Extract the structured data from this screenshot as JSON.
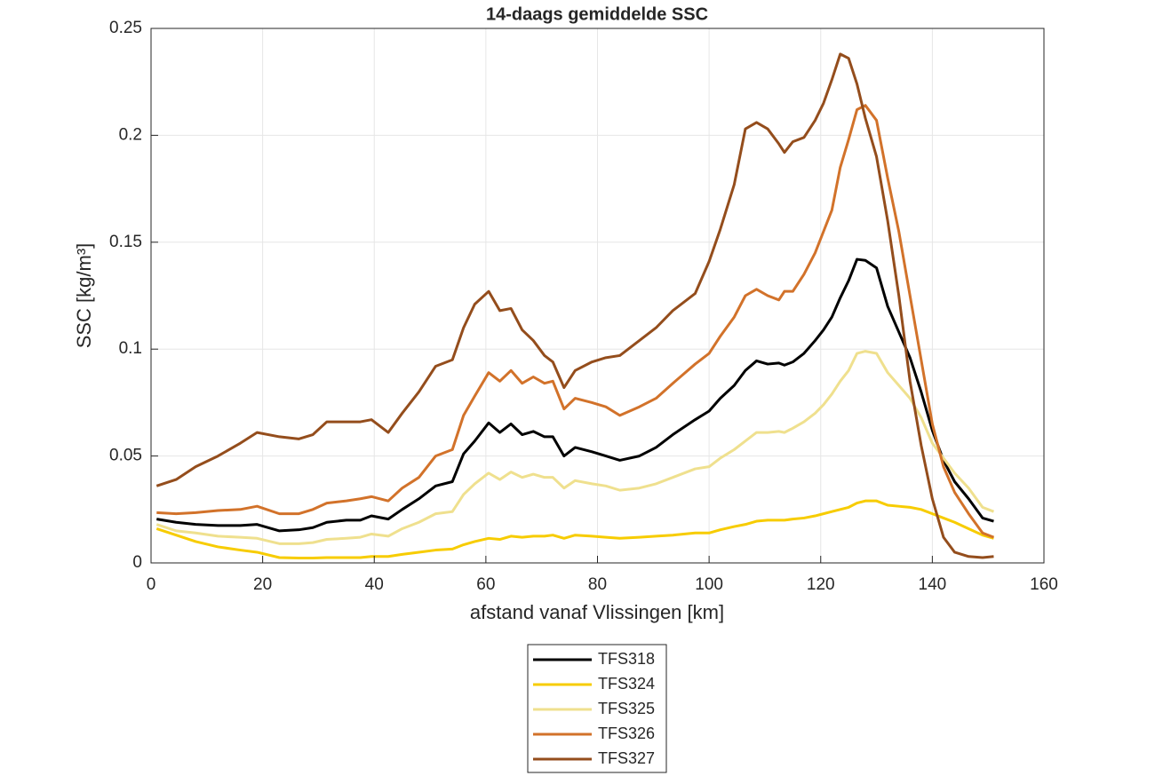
{
  "chart_data": {
    "type": "line",
    "title": "14-daags gemiddelde SSC",
    "xlabel": "afstand vanaf Vlissingen [km]",
    "ylabel": "SSC [kg/m³]",
    "xlim": [
      0,
      160
    ],
    "xticks": [
      0,
      20,
      40,
      60,
      80,
      100,
      120,
      140,
      160
    ],
    "ylim": [
      0,
      0.25
    ],
    "yticks": [
      0,
      0.05,
      0.1,
      0.15,
      0.2,
      0.25
    ],
    "grid": true,
    "legend": "below",
    "x": [
      1,
      4.5,
      8,
      12,
      16,
      19,
      23,
      26.5,
      29,
      31.5,
      35,
      37.5,
      39.5,
      42.5,
      45,
      48,
      51,
      54,
      56,
      58,
      60.5,
      62.5,
      64.5,
      66.5,
      68.5,
      70.5,
      72,
      74,
      76,
      79,
      81.5,
      84,
      87.5,
      90.5,
      93.5,
      97.5,
      100,
      102,
      104.5,
      106.5,
      108.5,
      110.5,
      112.5,
      113.5,
      115,
      117,
      119,
      120.5,
      122,
      123.5,
      125,
      126.5,
      128,
      130,
      132,
      134,
      136,
      138,
      140,
      142,
      144,
      146.5,
      149,
      151
    ],
    "series": [
      {
        "name": "TFS318",
        "color": "#000000",
        "values": [
          0.0205,
          0.019,
          0.018,
          0.0175,
          0.0175,
          0.018,
          0.015,
          0.0155,
          0.0165,
          0.019,
          0.02,
          0.02,
          0.022,
          0.0205,
          0.025,
          0.03,
          0.036,
          0.038,
          0.051,
          0.057,
          0.0655,
          0.061,
          0.065,
          0.06,
          0.0615,
          0.059,
          0.059,
          0.05,
          0.054,
          0.052,
          0.05,
          0.048,
          0.05,
          0.054,
          0.06,
          0.067,
          0.071,
          0.077,
          0.083,
          0.09,
          0.0945,
          0.093,
          0.0935,
          0.0925,
          0.094,
          0.098,
          0.104,
          0.109,
          0.115,
          0.124,
          0.132,
          0.142,
          0.1415,
          0.138,
          0.12,
          0.108,
          0.096,
          0.08,
          0.062,
          0.048,
          0.038,
          0.03,
          0.021,
          0.0195
        ]
      },
      {
        "name": "TFS324",
        "color": "#f7cc00",
        "values": [
          0.016,
          0.013,
          0.01,
          0.0075,
          0.006,
          0.005,
          0.0025,
          0.0023,
          0.0023,
          0.0025,
          0.0025,
          0.0025,
          0.003,
          0.003,
          0.004,
          0.005,
          0.006,
          0.0065,
          0.0085,
          0.01,
          0.0115,
          0.011,
          0.0125,
          0.012,
          0.0125,
          0.0125,
          0.013,
          0.0115,
          0.013,
          0.0125,
          0.012,
          0.0115,
          0.012,
          0.0125,
          0.013,
          0.014,
          0.014,
          0.0155,
          0.017,
          0.018,
          0.0195,
          0.02,
          0.02,
          0.02,
          0.0205,
          0.021,
          0.022,
          0.023,
          0.024,
          0.025,
          0.026,
          0.028,
          0.029,
          0.029,
          0.027,
          0.0265,
          0.026,
          0.025,
          0.023,
          0.021,
          0.019,
          0.016,
          0.013,
          0.0115
        ]
      },
      {
        "name": "TFS325",
        "color": "#efe08e",
        "values": [
          0.018,
          0.015,
          0.014,
          0.0125,
          0.012,
          0.0115,
          0.009,
          0.009,
          0.0095,
          0.011,
          0.0115,
          0.012,
          0.0135,
          0.0125,
          0.016,
          0.019,
          0.023,
          0.024,
          0.032,
          0.037,
          0.042,
          0.039,
          0.0425,
          0.04,
          0.0415,
          0.04,
          0.04,
          0.035,
          0.0385,
          0.037,
          0.036,
          0.034,
          0.035,
          0.037,
          0.04,
          0.044,
          0.045,
          0.049,
          0.053,
          0.057,
          0.061,
          0.061,
          0.0615,
          0.061,
          0.063,
          0.066,
          0.07,
          0.074,
          0.079,
          0.085,
          0.09,
          0.098,
          0.099,
          0.098,
          0.089,
          0.083,
          0.077,
          0.068,
          0.056,
          0.049,
          0.042,
          0.035,
          0.026,
          0.024
        ]
      },
      {
        "name": "TFS326",
        "color": "#d2722a",
        "values": [
          0.0235,
          0.023,
          0.0235,
          0.0245,
          0.025,
          0.0265,
          0.023,
          0.023,
          0.025,
          0.028,
          0.029,
          0.03,
          0.031,
          0.029,
          0.035,
          0.04,
          0.05,
          0.053,
          0.069,
          0.078,
          0.089,
          0.085,
          0.09,
          0.084,
          0.087,
          0.084,
          0.085,
          0.072,
          0.077,
          0.075,
          0.073,
          0.069,
          0.073,
          0.077,
          0.084,
          0.093,
          0.098,
          0.106,
          0.115,
          0.125,
          0.128,
          0.125,
          0.123,
          0.127,
          0.127,
          0.135,
          0.145,
          0.155,
          0.165,
          0.185,
          0.198,
          0.212,
          0.214,
          0.207,
          0.18,
          0.155,
          0.125,
          0.095,
          0.065,
          0.045,
          0.033,
          0.023,
          0.014,
          0.012
        ]
      },
      {
        "name": "TFS327",
        "color": "#944d1c",
        "values": [
          0.036,
          0.039,
          0.045,
          0.05,
          0.056,
          0.061,
          0.059,
          0.058,
          0.06,
          0.066,
          0.066,
          0.066,
          0.067,
          0.061,
          0.07,
          0.08,
          0.092,
          0.095,
          0.11,
          0.121,
          0.127,
          0.118,
          0.119,
          0.109,
          0.104,
          0.097,
          0.094,
          0.082,
          0.09,
          0.094,
          0.096,
          0.097,
          0.104,
          0.11,
          0.118,
          0.126,
          0.141,
          0.156,
          0.177,
          0.203,
          0.206,
          0.203,
          0.196,
          0.192,
          0.197,
          0.199,
          0.207,
          0.215,
          0.226,
          0.238,
          0.236,
          0.224,
          0.208,
          0.19,
          0.16,
          0.125,
          0.085,
          0.055,
          0.03,
          0.012,
          0.005,
          0.003,
          0.0025,
          0.003
        ]
      }
    ]
  }
}
